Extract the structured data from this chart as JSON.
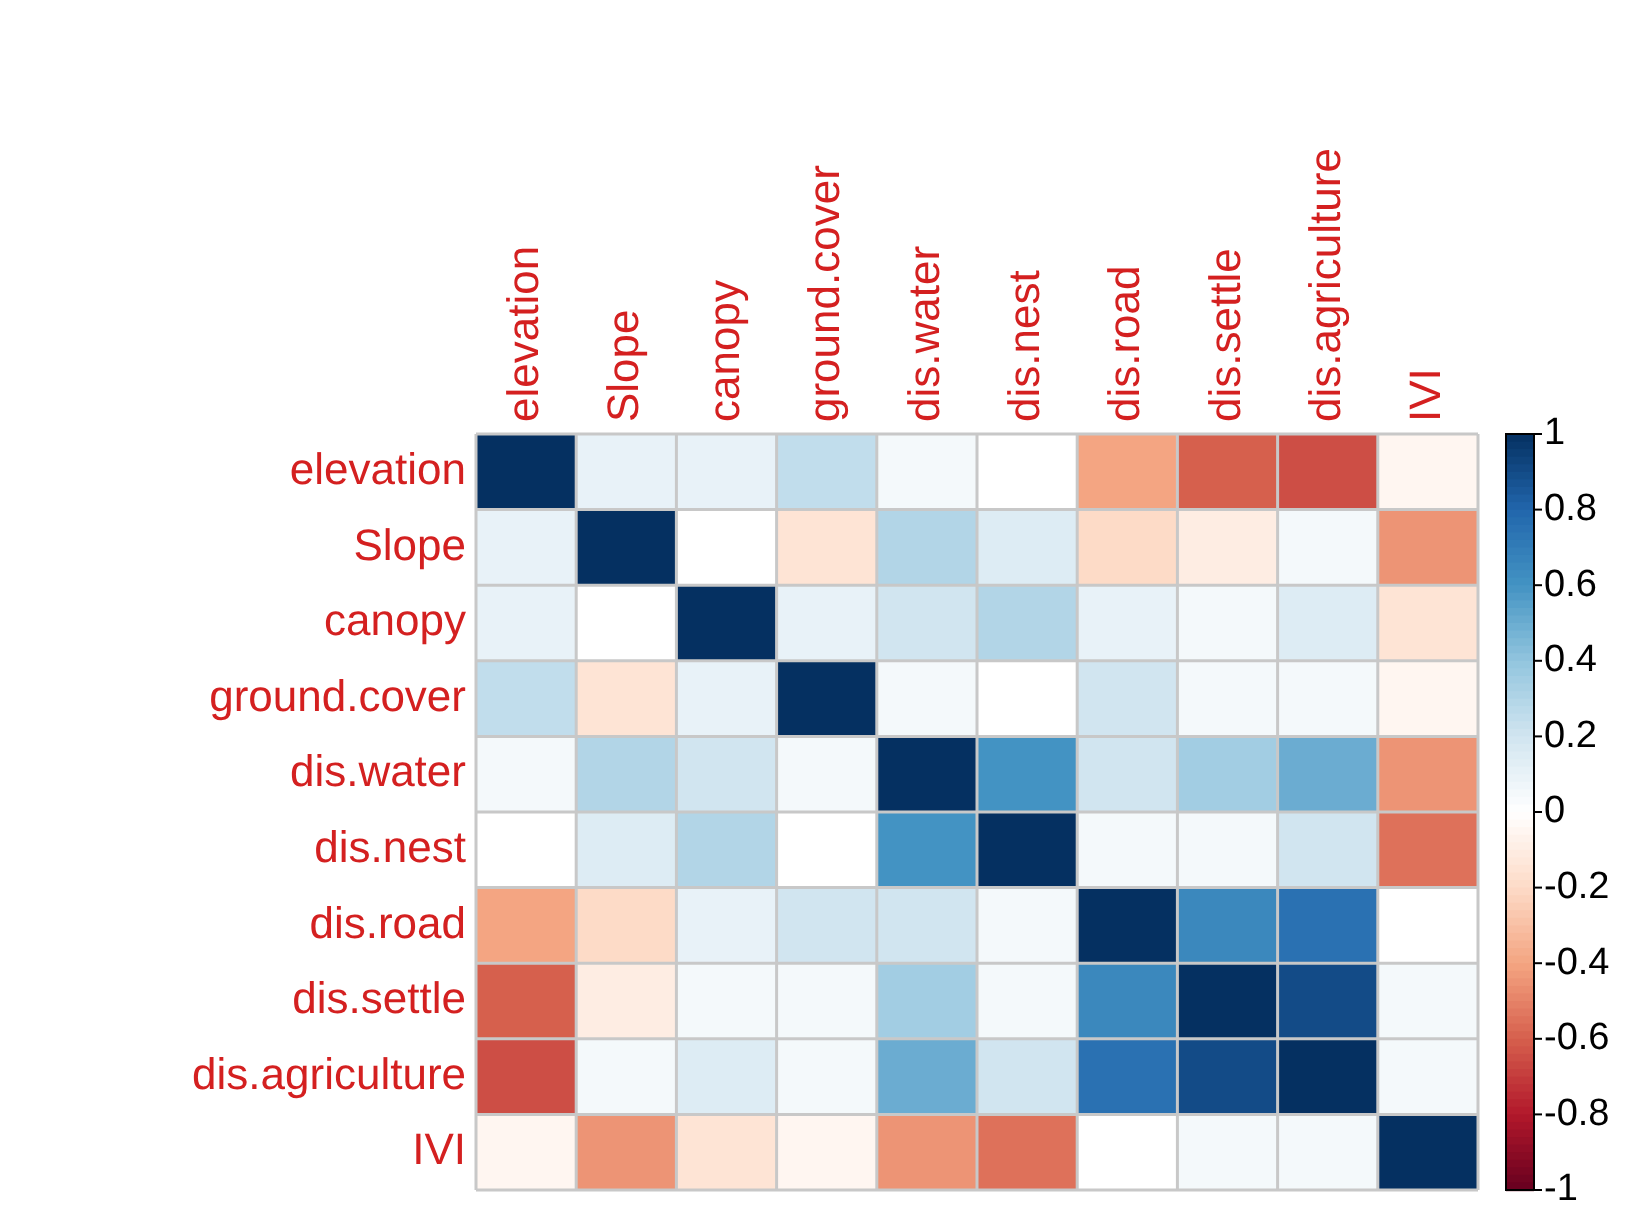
{
  "chart_data": {
    "type": "heatmap",
    "categories": [
      "elevation",
      "Slope",
      "canopy",
      "ground.cover",
      "dis.water",
      "dis.nest",
      "dis.road",
      "dis.settle",
      "dis.agriculture",
      "IVI"
    ],
    "y_categories": [
      "elevation",
      "Slope",
      "canopy",
      "ground.cover",
      "dis.water",
      "dis.nest",
      "dis.road",
      "dis.settle",
      "dis.agriculture",
      "IVI"
    ],
    "cells": [
      [
        1,
        0.1,
        0.1,
        0.25,
        0.05,
        0,
        -0.4,
        -0.6,
        -0.65,
        -0.05
      ],
      [
        0.1,
        1,
        0,
        -0.15,
        0.3,
        0.15,
        -0.2,
        -0.1,
        0.05,
        -0.45
      ],
      [
        0.1,
        0,
        1,
        0.1,
        0.2,
        0.3,
        0.1,
        0.05,
        0.15,
        -0.15
      ],
      [
        0.25,
        -0.15,
        0.1,
        1,
        0.05,
        0,
        0.2,
        0.05,
        0.05,
        -0.05
      ],
      [
        0.05,
        0.3,
        0.2,
        0.05,
        1,
        0.6,
        0.2,
        0.35,
        0.5,
        -0.45
      ],
      [
        0,
        0.15,
        0.3,
        0,
        0.6,
        1,
        0.05,
        0.05,
        0.2,
        -0.55
      ],
      [
        -0.4,
        -0.2,
        0.1,
        0.2,
        0.2,
        0.05,
        1,
        0.65,
        0.75,
        0
      ],
      [
        -0.6,
        -0.1,
        0.05,
        0.05,
        0.35,
        0.05,
        0.65,
        1,
        0.9,
        0.05
      ],
      [
        -0.65,
        0.05,
        0.15,
        0.05,
        0.5,
        0.2,
        0.75,
        0.9,
        1,
        0.05
      ],
      [
        -0.05,
        -0.45,
        -0.15,
        -0.05,
        -0.45,
        -0.55,
        0,
        0.05,
        0.05,
        1
      ]
    ],
    "grid": true,
    "clim": [
      -1,
      1
    ],
    "cticks": [
      1,
      0.8,
      0.6,
      0.4,
      0.2,
      0,
      -0.2,
      -0.4,
      -0.6,
      -0.8,
      -1
    ]
  }
}
